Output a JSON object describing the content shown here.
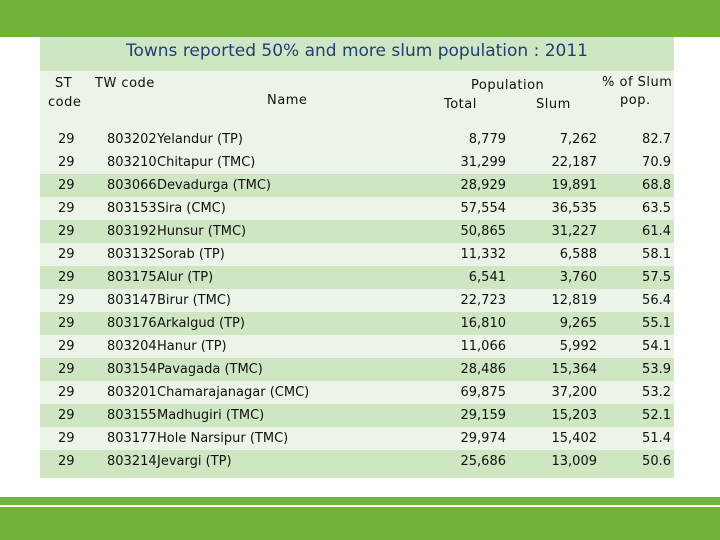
{
  "title": "Towns reported 50% and more slum population : 2011",
  "headers": {
    "st_code": [
      "ST",
      "code"
    ],
    "tw_code": "TW code",
    "name": "Name",
    "population": "Population",
    "total": "Total",
    "slum": "Slum",
    "pct": [
      "% of Slum",
      "pop."
    ]
  },
  "rows": [
    {
      "st": "29",
      "tw": "803202",
      "name": "Yelandur (TP)",
      "total": "8,779",
      "slum": "7,262",
      "pct": "82.7"
    },
    {
      "st": "29",
      "tw": "803210",
      "name": "Chitapur (TMC)",
      "total": "31,299",
      "slum": "22,187",
      "pct": "70.9"
    },
    {
      "st": "29",
      "tw": "803066",
      "name": "Devadurga (TMC)",
      "total": "28,929",
      "slum": "19,891",
      "pct": "68.8"
    },
    {
      "st": "29",
      "tw": "803153",
      "name": "Sira (CMC)",
      "total": "57,554",
      "slum": "36,535",
      "pct": "63.5"
    },
    {
      "st": "29",
      "tw": "803192",
      "name": "Hunsur (TMC)",
      "total": "50,865",
      "slum": "31,227",
      "pct": "61.4"
    },
    {
      "st": "29",
      "tw": "803132",
      "name": "Sorab (TP)",
      "total": "11,332",
      "slum": "6,588",
      "pct": "58.1"
    },
    {
      "st": "29",
      "tw": "803175",
      "name": "Alur (TP)",
      "total": "6,541",
      "slum": "3,760",
      "pct": "57.5"
    },
    {
      "st": "29",
      "tw": "803147",
      "name": "Birur (TMC)",
      "total": "22,723",
      "slum": "12,819",
      "pct": "56.4"
    },
    {
      "st": "29",
      "tw": "803176",
      "name": "Arkalgud (TP)",
      "total": "16,810",
      "slum": "9,265",
      "pct": "55.1"
    },
    {
      "st": "29",
      "tw": "803204",
      "name": "Hanur (TP)",
      "total": "11,066",
      "slum": "5,992",
      "pct": "54.1"
    },
    {
      "st": "29",
      "tw": "803154",
      "name": "Pavagada (TMC)",
      "total": "28,486",
      "slum": "15,364",
      "pct": "53.9"
    },
    {
      "st": "29",
      "tw": "803201",
      "name": "Chamarajanagar (CMC)",
      "total": "69,875",
      "slum": "37,200",
      "pct": "53.2"
    },
    {
      "st": "29",
      "tw": "803155",
      "name": "Madhugiri (TMC)",
      "total": "29,159",
      "slum": "15,203",
      "pct": "52.1"
    },
    {
      "st": "29",
      "tw": "803177",
      "name": "Hole Narsipur (TMC)",
      "total": "29,974",
      "slum": "15,402",
      "pct": "51.4"
    },
    {
      "st": "29",
      "tw": "803214",
      "name": "Jevargi (TP)",
      "total": "25,686",
      "slum": "13,009",
      "pct": "50.6"
    }
  ]
}
